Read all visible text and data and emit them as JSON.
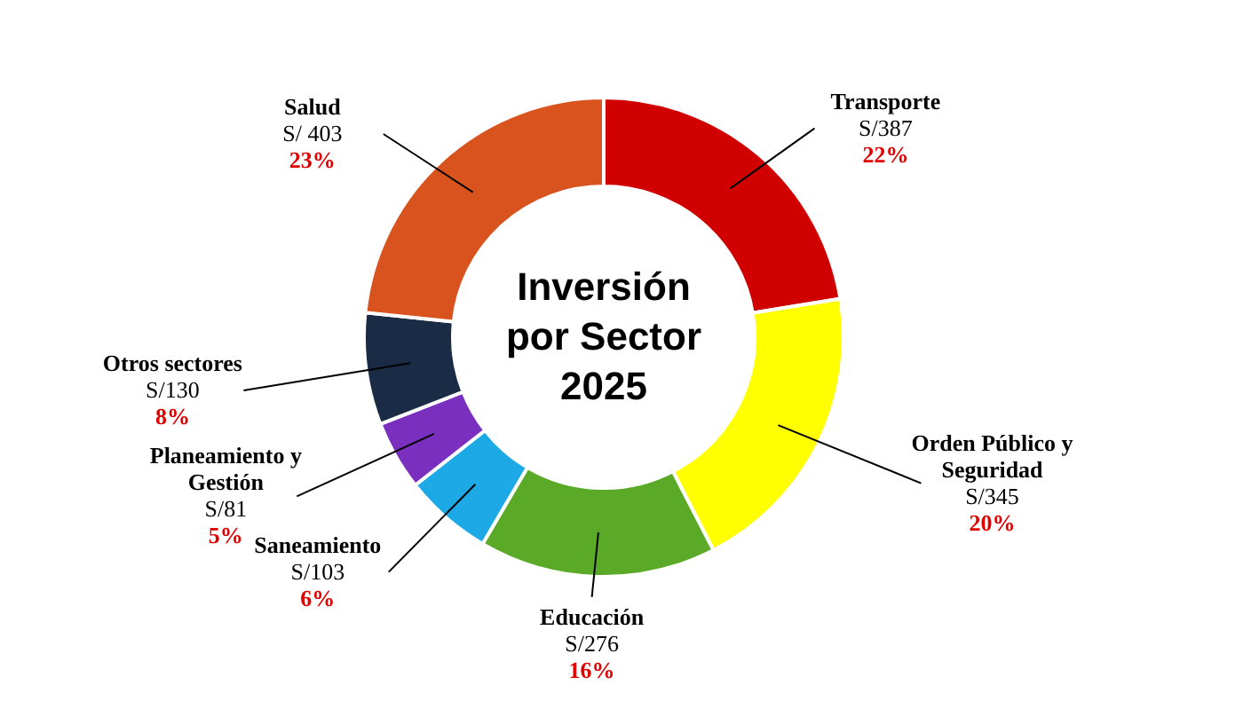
{
  "chart_data": {
    "type": "donut",
    "title": "Inversión\npor Sector\n2025",
    "categories": [
      "Transporte",
      "Orden Público y\nSeguridad",
      "Educación",
      "Saneamiento",
      "Planeamiento y\nGestión",
      "Otros sectores",
      "Salud"
    ],
    "values": [
      387,
      345,
      276,
      103,
      81,
      130,
      403
    ],
    "colors": [
      "#d00000",
      "#ffff00",
      "#5aaa28",
      "#1ca9e6",
      "#7a2fbf",
      "#1a2c45",
      "#d9531e"
    ],
    "value_labels": [
      "S/387",
      "S/345",
      "S/276",
      "S/103",
      "S/81",
      "S/130",
      "S/ 403"
    ],
    "annotations": [
      "22%",
      "20%",
      "16%",
      "6%",
      "5%",
      "8%",
      "23%"
    ],
    "legend": false
  }
}
